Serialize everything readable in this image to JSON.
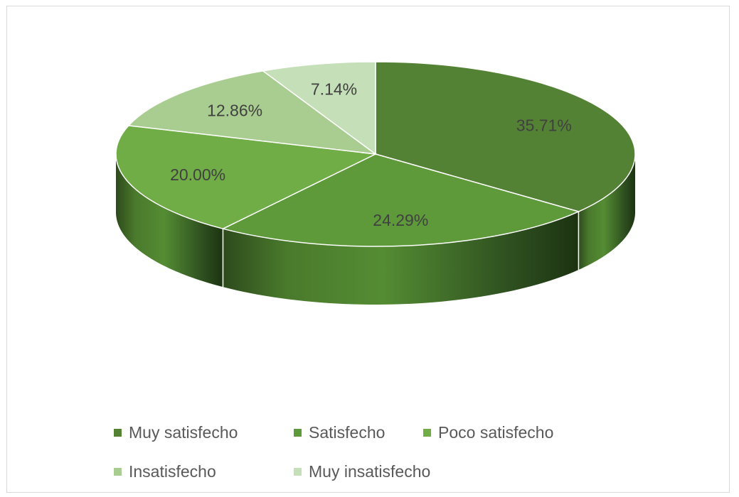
{
  "chart_data": {
    "type": "pie",
    "style": "3d",
    "categories": [
      "Muy satisfecho",
      "Satisfecho",
      "Poco satisfecho",
      "Insatisfecho",
      "Muy insatisfecho"
    ],
    "values": [
      35.71,
      24.29,
      20.0,
      12.86,
      7.14
    ],
    "data_labels": [
      "35.71%",
      "24.29%",
      "20.00%",
      "12.86%",
      "7.14%"
    ],
    "colors": [
      "#548235",
      "#5e9a3a",
      "#70ad47",
      "#a9cd90",
      "#c5dfb8"
    ],
    "legend": {
      "position": "bottom",
      "entries": [
        "Muy satisfecho",
        "Satisfecho",
        "Poco satisfecho",
        "Insatisfecho",
        "Muy insatisfecho"
      ]
    }
  }
}
